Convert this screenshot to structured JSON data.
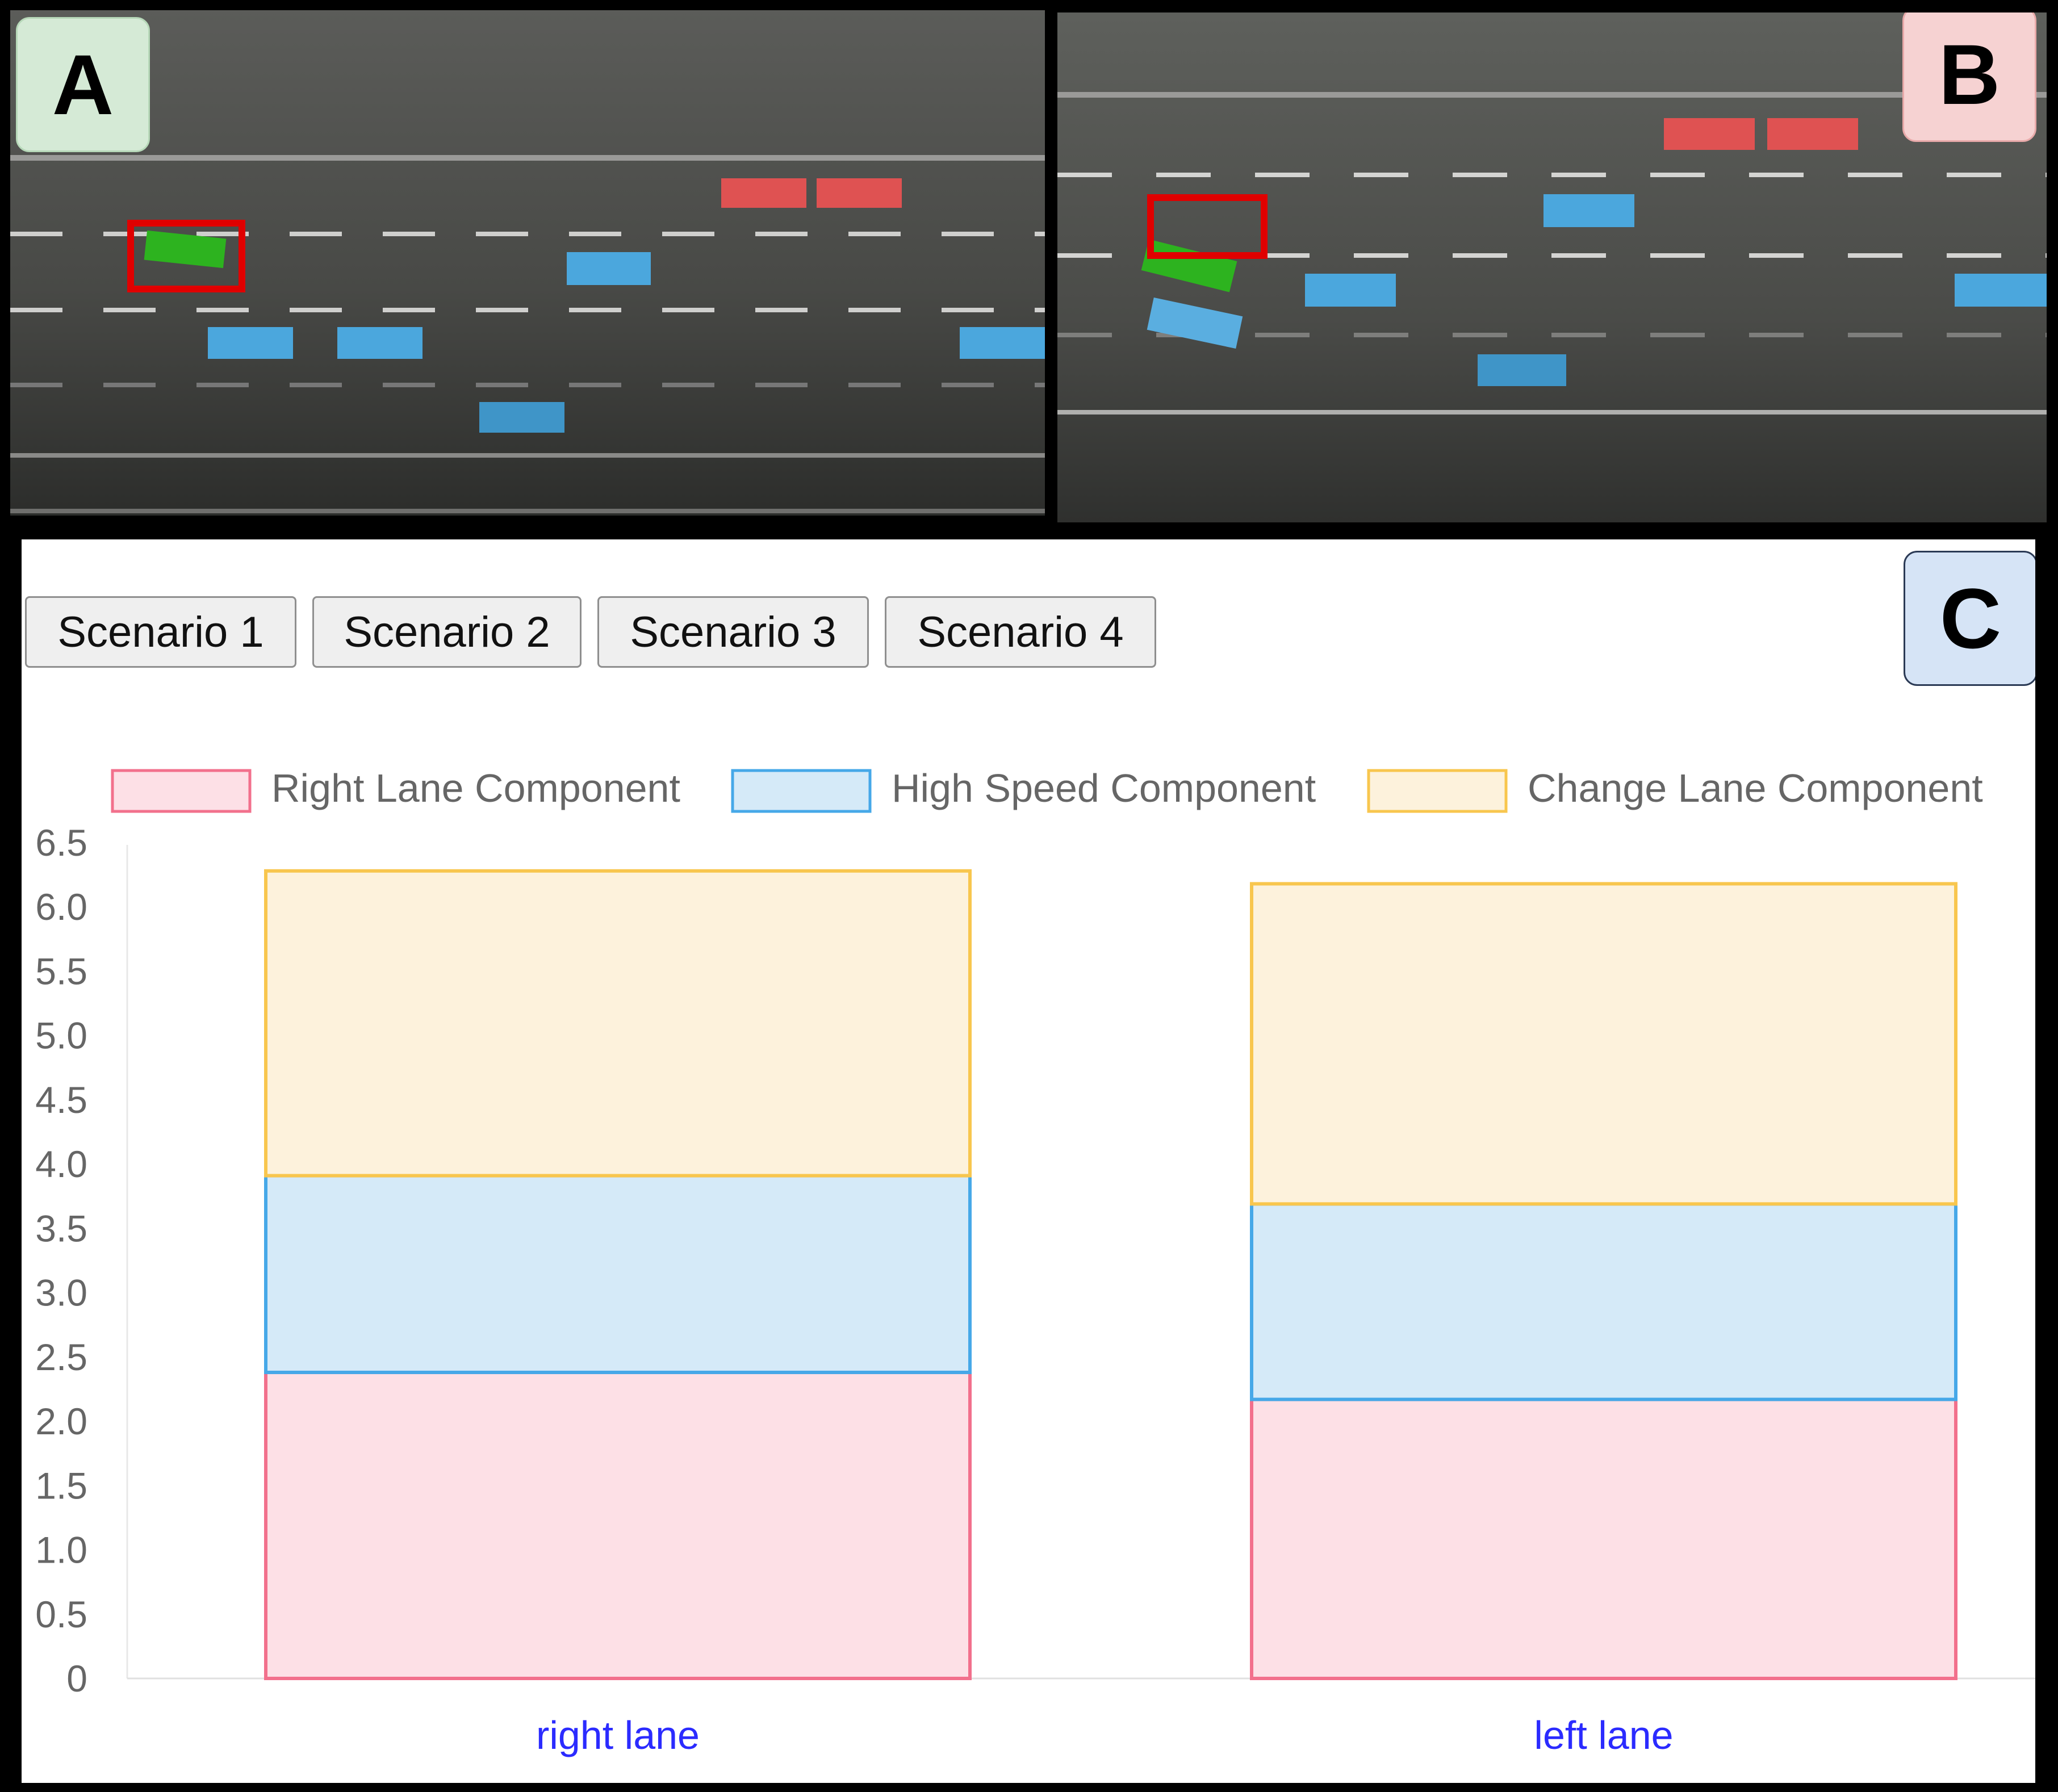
{
  "panels": {
    "a": {
      "label": "A"
    },
    "b": {
      "label": "B"
    },
    "c": {
      "label": "C"
    }
  },
  "tabs": [
    {
      "label": "Scenario 1"
    },
    {
      "label": "Scenario 2"
    },
    {
      "label": "Scenario 3"
    },
    {
      "label": "Scenario 4"
    }
  ],
  "colors": {
    "road": "#525451",
    "ego_vehicle": "#2db31f",
    "other_vehicle": "#4ba7dd",
    "target_vehicle": "#df5252",
    "highlight_box": "#e00000"
  },
  "chart_data": {
    "type": "bar",
    "stacked": true,
    "categories": [
      "right lane",
      "left lane"
    ],
    "series": [
      {
        "name": "Right Lane Component",
        "values": [
          2.38,
          2.17
        ],
        "fill": "#fde0e6",
        "stroke": "#f2708c"
      },
      {
        "name": "High Speed Component",
        "values": [
          1.53,
          1.52
        ],
        "fill": "#d5eaf8",
        "stroke": "#46a8e8"
      },
      {
        "name": "Change Lane Component",
        "values": [
          2.37,
          2.49
        ],
        "fill": "#fdf2dc",
        "stroke": "#f8c64e"
      }
    ],
    "ylim": [
      0,
      6.5
    ],
    "yticks": [
      "0",
      "0.5",
      "1.0",
      "1.5",
      "2.0",
      "2.5",
      "3.0",
      "3.5",
      "4.0",
      "4.5",
      "5.0",
      "5.5",
      "6.0",
      "6.5"
    ],
    "legend_position": "top",
    "grid": false
  }
}
